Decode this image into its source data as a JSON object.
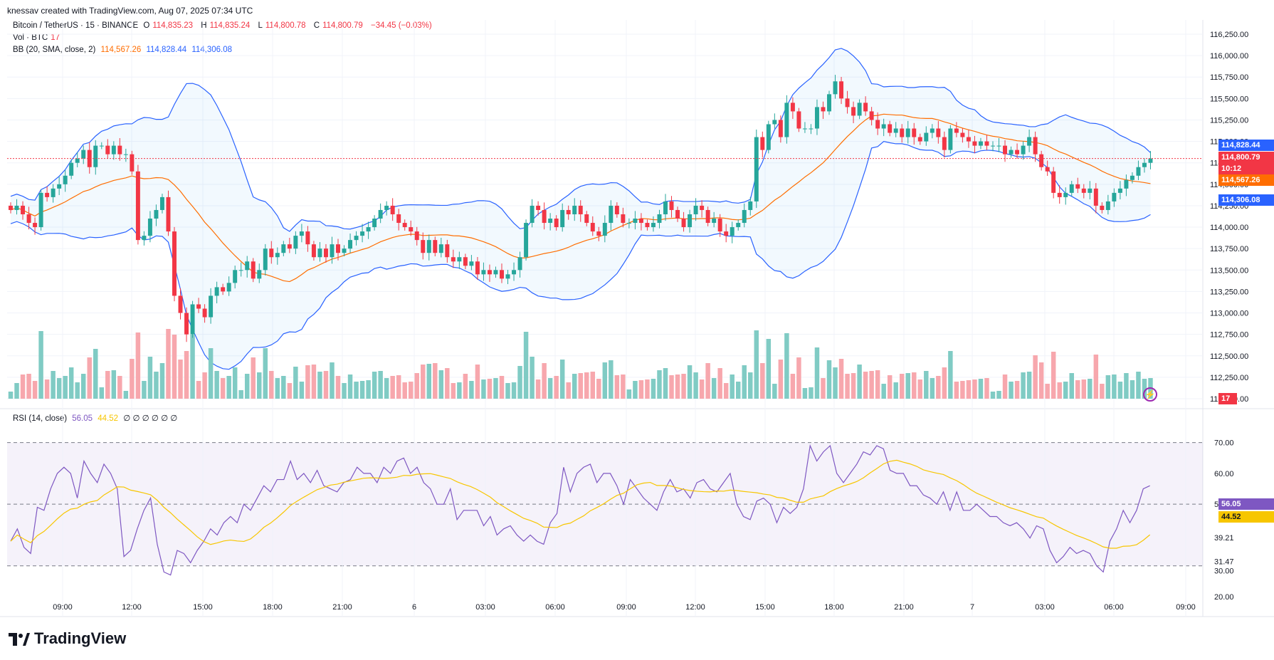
{
  "header": {
    "created_by": "knessav created with TradingView.com, Aug 07, 2025 07:34 UTC"
  },
  "legend": {
    "symbol": "Bitcoin / TetherUS · 15 · BINANCE",
    "o_label": "O",
    "o_value": "114,835.23",
    "h_label": "H",
    "h_value": "114,835.24",
    "l_label": "L",
    "l_value": "114,800.78",
    "c_label": "C",
    "c_value": "114,800.79",
    "change": "−34.45 (−0.03%)",
    "vol_label": "Vol · BTC",
    "vol_value": "17",
    "bb_label": "BB (20, SMA, close, 2)",
    "bb_basis": "114,567.26",
    "bb_upper": "114,828.44",
    "bb_lower": "114,306.08",
    "rsi_label": "RSI (14, close)",
    "rsi_value": "56.05",
    "rsi_ma": "44.52",
    "rsi_extra": "∅ ∅ ∅ ∅ ∅ ∅"
  },
  "price_tags": {
    "upper": "114,828.44",
    "last": "114,800.79",
    "countdown": "10:12",
    "basis": "114,567.26",
    "lower": "114,306.08",
    "volume": "17",
    "rsi": "56.05",
    "rsi_ma": "44.52"
  },
  "colors": {
    "up": "#26a69a",
    "down": "#f23645",
    "bb": "#2962ff",
    "basis": "#ff6d00",
    "rsi": "#7e57c2",
    "rsi_ma": "#f7c600",
    "vol_up": "#80cbc4",
    "vol_down": "#f7a7ad"
  },
  "brand": "TradingView",
  "chart_data": {
    "type": "candlestick",
    "symbol": "BTCUSDT",
    "timeframe": "15",
    "price_axis": {
      "min": 112000,
      "max": 116250,
      "ticks": [
        "116,250.00",
        "116,000.00",
        "115,750.00",
        "115,500.00",
        "115,250.00",
        "115,000.00",
        "114,750.00",
        "114,500.00",
        "114,250.00",
        "114,000.00",
        "113,750.00",
        "113,500.00",
        "113,250.00",
        "113,000.00",
        "112,750.00",
        "112,500.00",
        "112,250.00",
        "112,000.00"
      ]
    },
    "rsi_axis": {
      "min": 20,
      "max": 75,
      "ticks": [
        "70.00",
        "60.00",
        "50.00",
        "39.21",
        "31.47",
        "30.00",
        "20.00"
      ],
      "levels": [
        70,
        50,
        30
      ]
    },
    "time_axis": [
      "09:00",
      "12:00",
      "15:00",
      "18:00",
      "21:00",
      "6",
      "03:00",
      "06:00",
      "09:00",
      "12:00",
      "15:00",
      "18:00",
      "21:00",
      "7",
      "03:00",
      "06:00",
      "09:00"
    ],
    "closes": [
      114200,
      114250,
      114150,
      114050,
      114000,
      114400,
      114350,
      114450,
      114500,
      114600,
      114750,
      114800,
      114900,
      114700,
      114950,
      114950,
      114850,
      114950,
      114850,
      114850,
      114650,
      113850,
      113900,
      114100,
      114200,
      114350,
      113950,
      113200,
      113000,
      112750,
      113100,
      113050,
      112950,
      113200,
      113300,
      113250,
      113350,
      113500,
      113500,
      113600,
      113400,
      113500,
      113750,
      113650,
      113700,
      113800,
      113750,
      113900,
      113950,
      113800,
      113650,
      113750,
      113650,
      113800,
      113700,
      113750,
      113850,
      113900,
      113950,
      114000,
      114100,
      114200,
      114250,
      114150,
      114050,
      114000,
      113950,
      113850,
      113700,
      113850,
      113700,
      113800,
      113650,
      113600,
      113650,
      113550,
      113600,
      113450,
      113500,
      113450,
      113500,
      113400,
      113450,
      113500,
      113650,
      114050,
      114250,
      114200,
      114050,
      114100,
      114000,
      114200,
      114150,
      114250,
      114150,
      114050,
      113950,
      113900,
      114050,
      114250,
      114150,
      114050,
      114050,
      114100,
      114050,
      114000,
      114050,
      114150,
      114300,
      114200,
      114100,
      114000,
      114150,
      114250,
      114200,
      114050,
      114100,
      113950,
      113900,
      114000,
      114050,
      114200,
      114300,
      115050,
      114900,
      115200,
      115250,
      115050,
      115450,
      115350,
      115150,
      115150,
      115150,
      115400,
      115350,
      115550,
      115700,
      115500,
      115400,
      115300,
      115450,
      115350,
      115250,
      115150,
      115200,
      115100,
      115150,
      115050,
      115150,
      115050,
      115000,
      115100,
      115150,
      115050,
      114900,
      115150,
      115100,
      115050,
      115000,
      114950,
      115000,
      114950,
      114950,
      114950,
      114850,
      114900,
      114850,
      114950,
      115050,
      114850,
      114700,
      114650,
      114400,
      114350,
      114400,
      114500,
      114450,
      114400,
      114450,
      114250,
      114200,
      114300,
      114400,
      114450,
      114550,
      114600,
      114700,
      114750,
      114800
    ],
    "volume_note": "Volume histogram under price, last value 17",
    "rsi_values": [
      38,
      42,
      36,
      34,
      49,
      48,
      55,
      60,
      62,
      60,
      52,
      64,
      60,
      57,
      63,
      60,
      55,
      33,
      35,
      42,
      48,
      52,
      37,
      28,
      27,
      35,
      34,
      31,
      35,
      38,
      42,
      40,
      44,
      46,
      44,
      50,
      48,
      52,
      56,
      54,
      58,
      58,
      64,
      58,
      60,
      57,
      61,
      56,
      55,
      54,
      57,
      58,
      62,
      60,
      60,
      57,
      62,
      60,
      64,
      65,
      60,
      62,
      57,
      55,
      50,
      50,
      55,
      45,
      48,
      48,
      48,
      43,
      46,
      40,
      42,
      43,
      40,
      38,
      40,
      38,
      37,
      44,
      47,
      62,
      54,
      60,
      62,
      63,
      57,
      60,
      60,
      56,
      50,
      58,
      55,
      52,
      50,
      48,
      54,
      58,
      54,
      55,
      52,
      57,
      58,
      55,
      54,
      57,
      60,
      50,
      46,
      45,
      51,
      52,
      50,
      44,
      49,
      47,
      49,
      55,
      69,
      64,
      67,
      69,
      60,
      57,
      60,
      63,
      67,
      66,
      69,
      68,
      61,
      60,
      60,
      56,
      56,
      53,
      52,
      50,
      54,
      48,
      54,
      48,
      48,
      50,
      48,
      46,
      46,
      44,
      43,
      44,
      42,
      39,
      43,
      42,
      35,
      31,
      33,
      36,
      34,
      35,
      34,
      30,
      28,
      38,
      42,
      48,
      44,
      48,
      55,
      56
    ]
  }
}
